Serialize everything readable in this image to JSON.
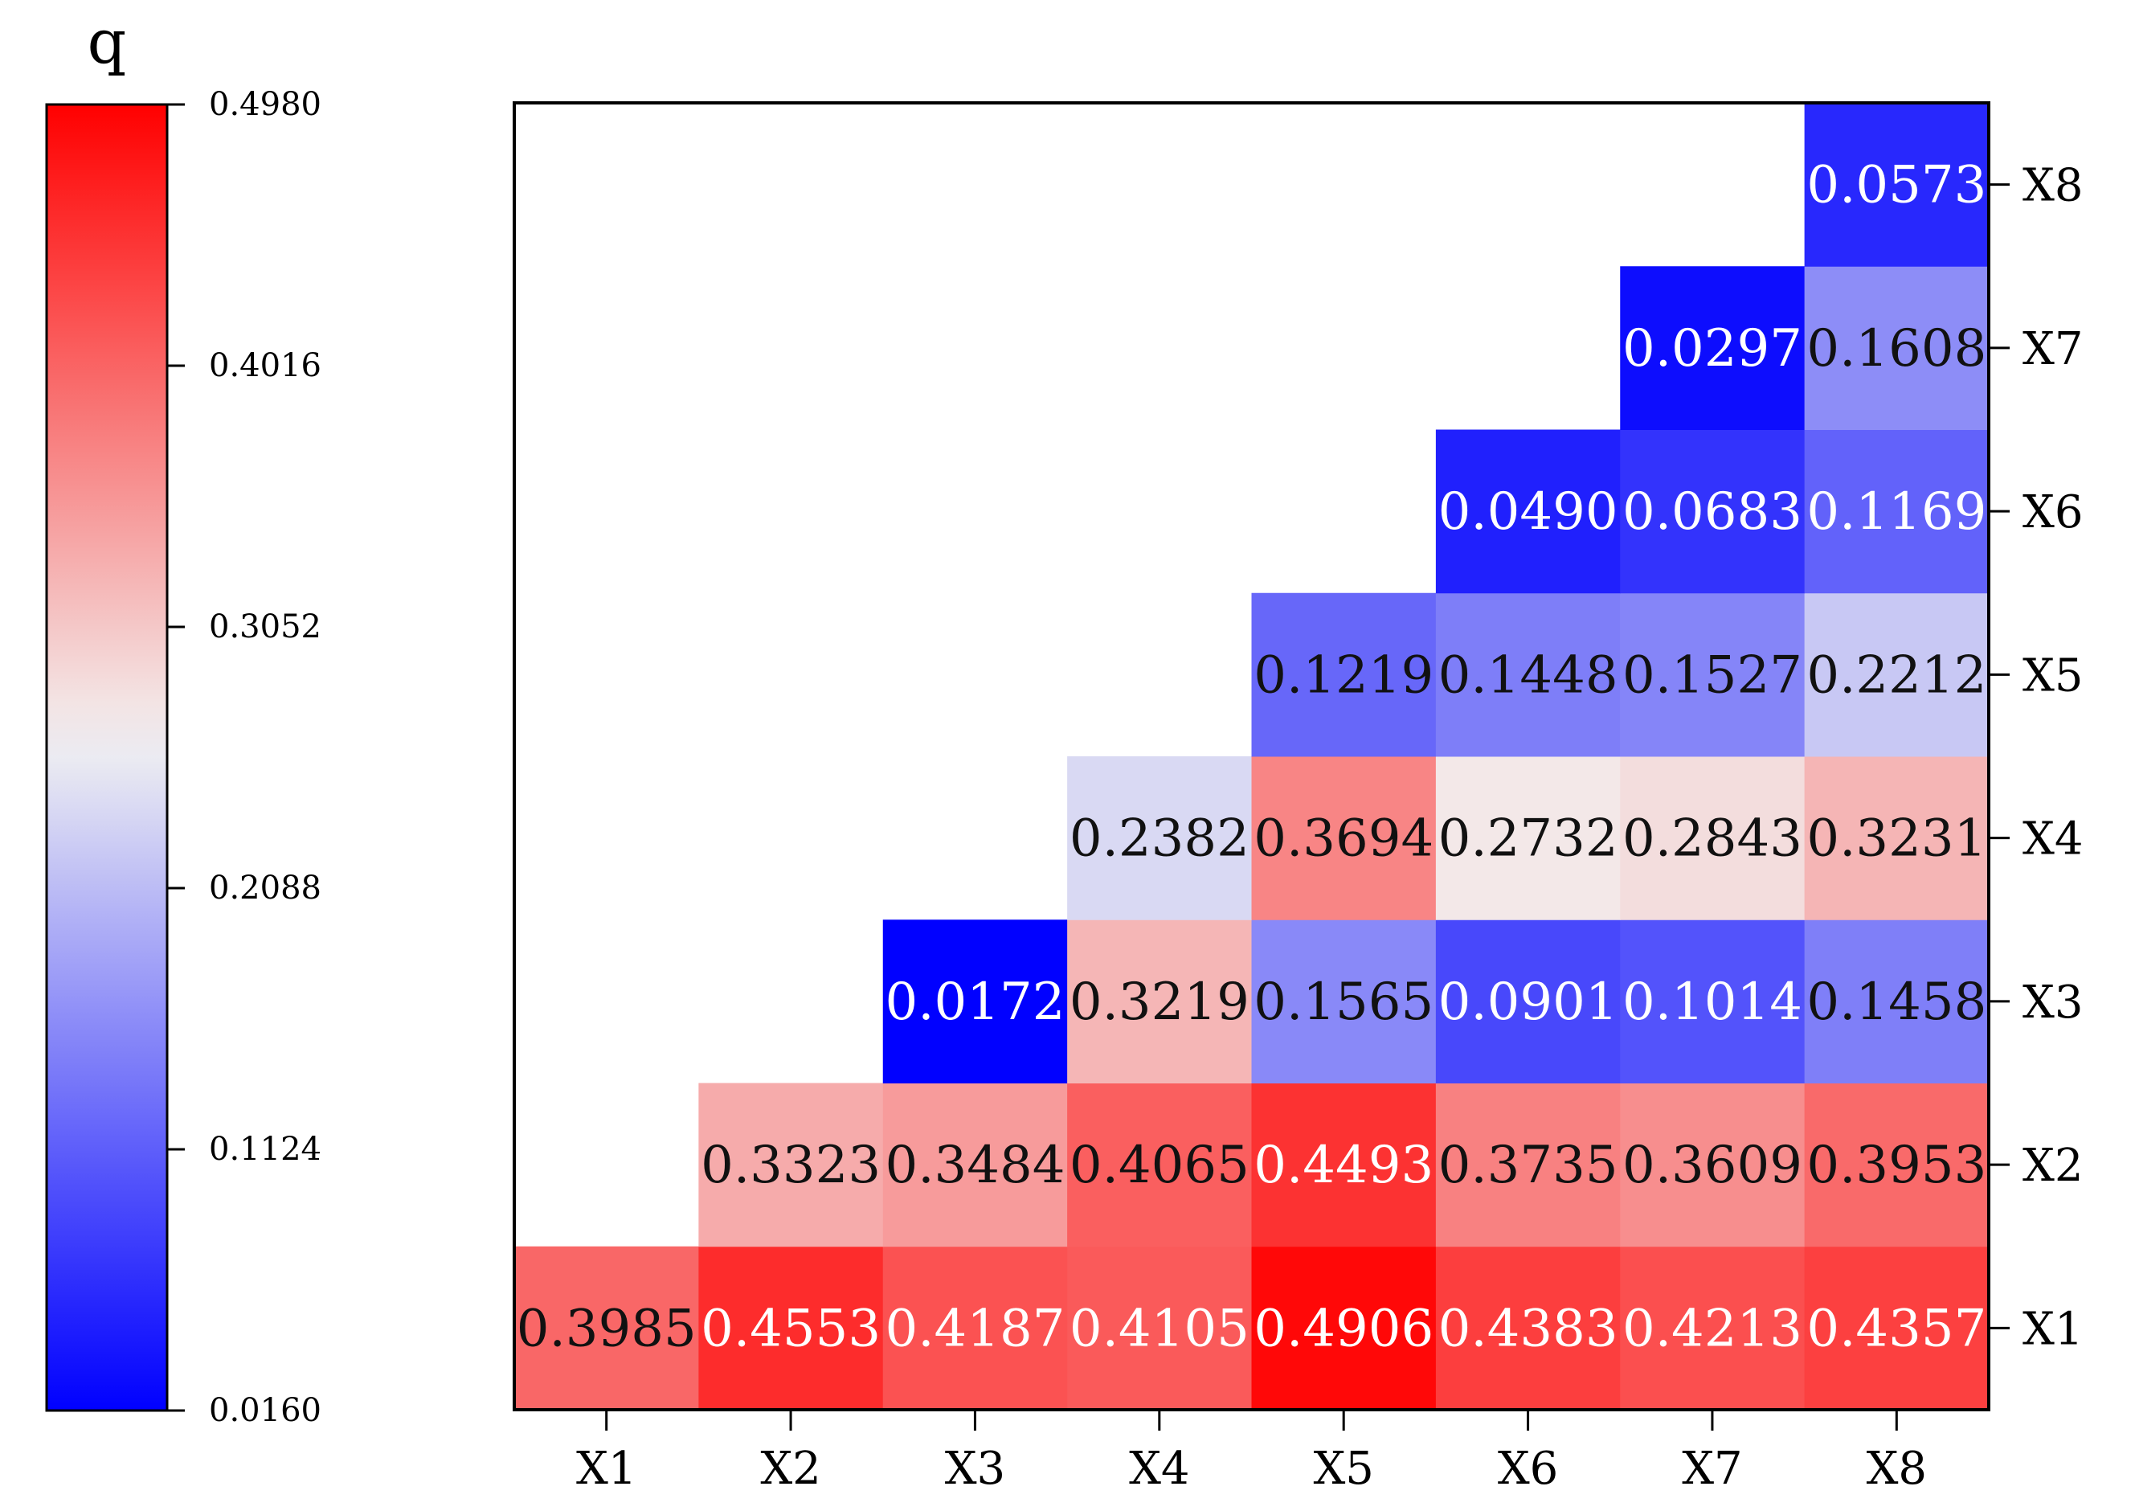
{
  "chart_data": {
    "type": "heatmap",
    "colorbar": {
      "title": "q",
      "min": 0.016,
      "max": 0.498,
      "tick_labels": [
        "0.4980",
        "0.4016",
        "0.3052",
        "0.2088",
        "0.1124",
        "0.0160"
      ],
      "tick_values": [
        0.498,
        0.4016,
        0.3052,
        0.2088,
        0.1124,
        0.016
      ],
      "colors": {
        "low": "#0000ff",
        "mid": "#f2f2f2",
        "high": "#ff0000"
      },
      "midpoint": 0.264
    },
    "x_labels": [
      "X1",
      "X2",
      "X3",
      "X4",
      "X5",
      "X6",
      "X7",
      "X8"
    ],
    "y_labels": [
      "X1",
      "X2",
      "X3",
      "X4",
      "X5",
      "X6",
      "X7",
      "X8"
    ],
    "y_axis_side": "right",
    "cells": [
      {
        "row": "X1",
        "col": "X1",
        "value": 0.3985,
        "label": "0.3985"
      },
      {
        "row": "X1",
        "col": "X2",
        "value": 0.4553,
        "label": "0.4553"
      },
      {
        "row": "X1",
        "col": "X3",
        "value": 0.4187,
        "label": "0.4187"
      },
      {
        "row": "X1",
        "col": "X4",
        "value": 0.4105,
        "label": "0.4105"
      },
      {
        "row": "X1",
        "col": "X5",
        "value": 0.4906,
        "label": "0.4906"
      },
      {
        "row": "X1",
        "col": "X6",
        "value": 0.4383,
        "label": "0.4383"
      },
      {
        "row": "X1",
        "col": "X7",
        "value": 0.4213,
        "label": "0.4213"
      },
      {
        "row": "X1",
        "col": "X8",
        "value": 0.4357,
        "label": "0.4357"
      },
      {
        "row": "X2",
        "col": "X2",
        "value": 0.3323,
        "label": "0.3323"
      },
      {
        "row": "X2",
        "col": "X3",
        "value": 0.3484,
        "label": "0.3484"
      },
      {
        "row": "X2",
        "col": "X4",
        "value": 0.4065,
        "label": "0.4065"
      },
      {
        "row": "X2",
        "col": "X5",
        "value": 0.4493,
        "label": "0.4493"
      },
      {
        "row": "X2",
        "col": "X6",
        "value": 0.3735,
        "label": "0.3735"
      },
      {
        "row": "X2",
        "col": "X7",
        "value": 0.3609,
        "label": "0.3609"
      },
      {
        "row": "X2",
        "col": "X8",
        "value": 0.3953,
        "label": "0.3953"
      },
      {
        "row": "X3",
        "col": "X3",
        "value": 0.0172,
        "label": "0.0172"
      },
      {
        "row": "X3",
        "col": "X4",
        "value": 0.3219,
        "label": "0.3219"
      },
      {
        "row": "X3",
        "col": "X5",
        "value": 0.1565,
        "label": "0.1565"
      },
      {
        "row": "X3",
        "col": "X6",
        "value": 0.0901,
        "label": "0.0901"
      },
      {
        "row": "X3",
        "col": "X7",
        "value": 0.1014,
        "label": "0.1014"
      },
      {
        "row": "X3",
        "col": "X8",
        "value": 0.1458,
        "label": "0.1458"
      },
      {
        "row": "X4",
        "col": "X4",
        "value": 0.2382,
        "label": "0.2382"
      },
      {
        "row": "X4",
        "col": "X5",
        "value": 0.3694,
        "label": "0.3694"
      },
      {
        "row": "X4",
        "col": "X6",
        "value": 0.2732,
        "label": "0.2732"
      },
      {
        "row": "X4",
        "col": "X7",
        "value": 0.2843,
        "label": "0.2843"
      },
      {
        "row": "X4",
        "col": "X8",
        "value": 0.3231,
        "label": "0.3231"
      },
      {
        "row": "X5",
        "col": "X5",
        "value": 0.1219,
        "label": "0.1219"
      },
      {
        "row": "X5",
        "col": "X6",
        "value": 0.1448,
        "label": "0.1448"
      },
      {
        "row": "X5",
        "col": "X7",
        "value": 0.1527,
        "label": "0.1527"
      },
      {
        "row": "X5",
        "col": "X8",
        "value": 0.2212,
        "label": "0.2212"
      },
      {
        "row": "X6",
        "col": "X6",
        "value": 0.049,
        "label": "0.0490"
      },
      {
        "row": "X6",
        "col": "X7",
        "value": 0.0683,
        "label": "0.0683"
      },
      {
        "row": "X6",
        "col": "X8",
        "value": 0.1169,
        "label": "0.1169"
      },
      {
        "row": "X7",
        "col": "X7",
        "value": 0.0297,
        "label": "0.0297"
      },
      {
        "row": "X7",
        "col": "X8",
        "value": 0.1608,
        "label": "0.1608"
      },
      {
        "row": "X8",
        "col": "X8",
        "value": 0.0573,
        "label": "0.0573"
      }
    ]
  }
}
